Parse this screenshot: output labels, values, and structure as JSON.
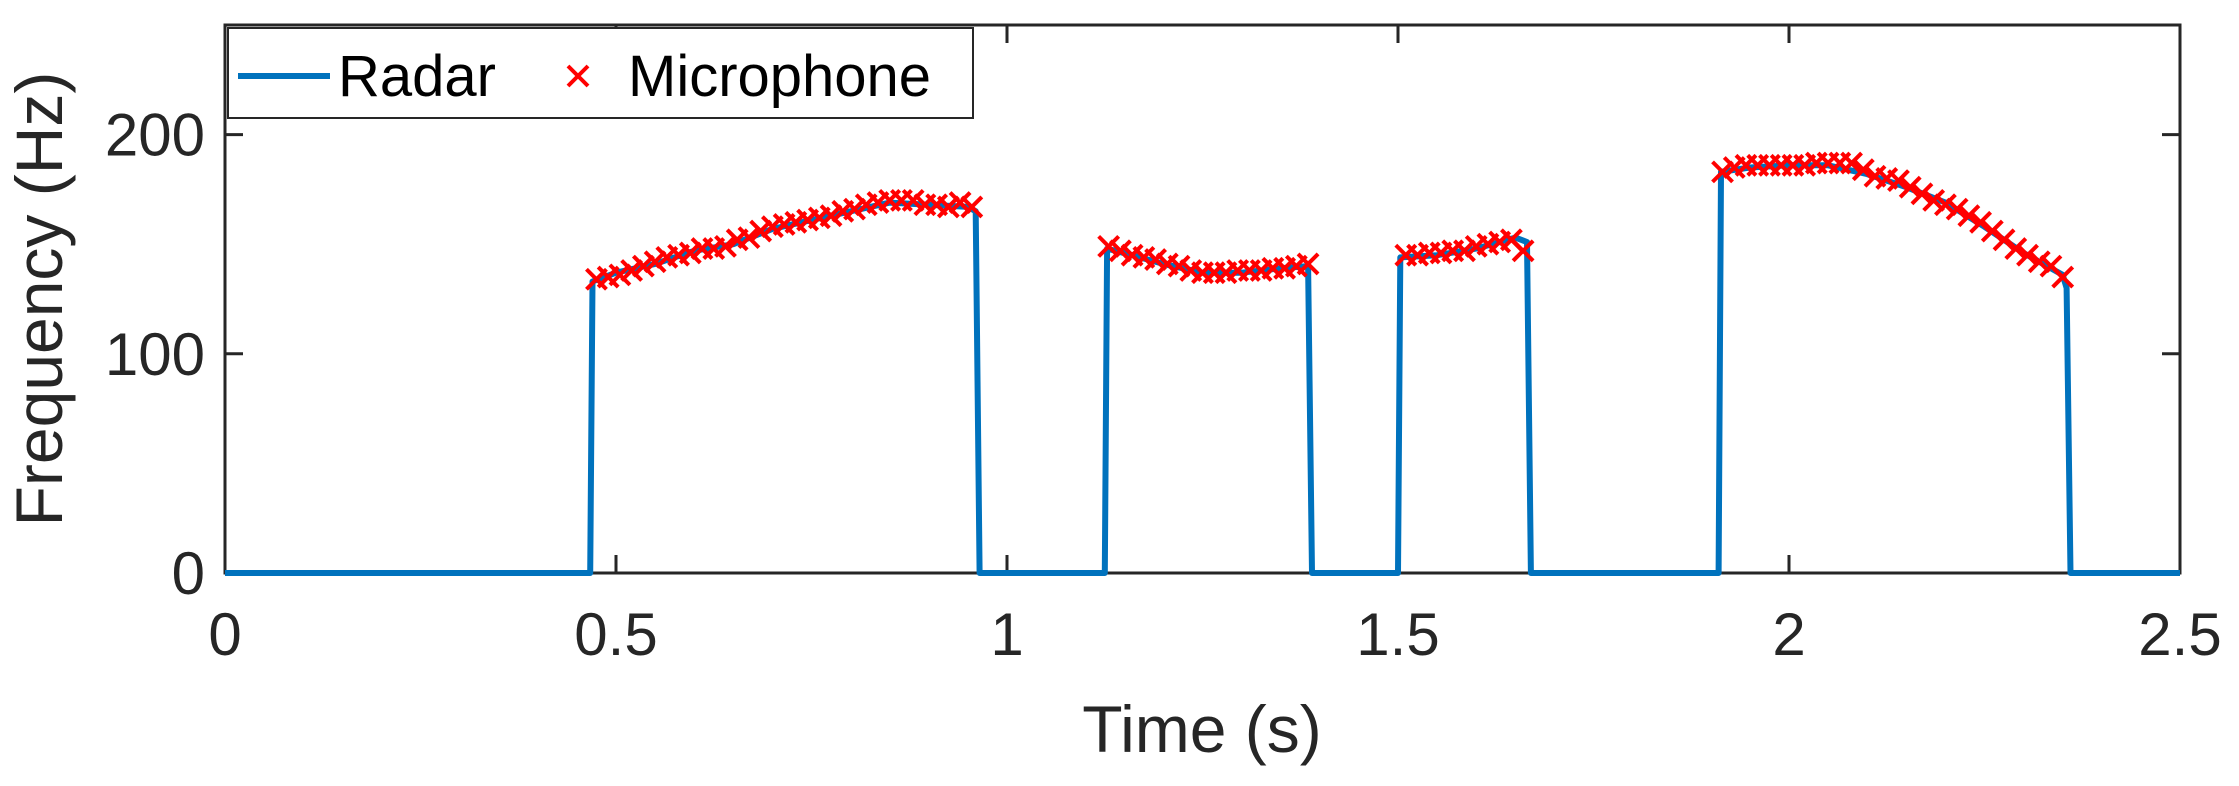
{
  "chart_data": {
    "type": "line",
    "title": "",
    "xlabel": "Time (s)",
    "ylabel": "Frequency (Hz)",
    "xlim": [
      0,
      2.5
    ],
    "ylim": [
      0,
      250
    ],
    "x_ticks": [
      "0",
      "0.5",
      "1",
      "1.5",
      "2",
      "2.5"
    ],
    "y_ticks": [
      "0",
      "100",
      "200"
    ],
    "x_tick_values": [
      0,
      0.5,
      1,
      1.5,
      2,
      2.5
    ],
    "y_tick_values": [
      0,
      100,
      200
    ],
    "grid": false,
    "legend_position": "top-left",
    "colors": {
      "radar": "#0072BD",
      "microphone": "#FF0000",
      "axis": "#262626"
    },
    "series": [
      {
        "name": "Radar",
        "kind": "line",
        "points": [
          [
            0,
            0
          ],
          [
            0.467,
            0
          ],
          [
            0.47,
            133
          ],
          [
            0.5,
            137
          ],
          [
            0.55,
            141
          ],
          [
            0.6,
            147
          ],
          [
            0.65,
            150
          ],
          [
            0.7,
            157
          ],
          [
            0.75,
            161
          ],
          [
            0.8,
            165
          ],
          [
            0.85,
            169
          ],
          [
            0.9,
            168
          ],
          [
            0.95,
            167
          ],
          [
            0.96,
            165
          ],
          [
            0.965,
            0
          ],
          [
            1.125,
            0
          ],
          [
            1.128,
            148
          ],
          [
            1.16,
            145
          ],
          [
            1.2,
            141
          ],
          [
            1.25,
            137
          ],
          [
            1.3,
            137
          ],
          [
            1.35,
            139
          ],
          [
            1.385,
            140
          ],
          [
            1.39,
            0
          ],
          [
            1.5,
            0
          ],
          [
            1.503,
            144
          ],
          [
            1.55,
            145
          ],
          [
            1.6,
            148
          ],
          [
            1.65,
            153
          ],
          [
            1.665,
            151
          ],
          [
            1.67,
            0
          ],
          [
            1.91,
            0
          ],
          [
            1.913,
            183
          ],
          [
            1.95,
            185
          ],
          [
            2.0,
            186
          ],
          [
            2.05,
            186
          ],
          [
            2.1,
            182
          ],
          [
            2.15,
            176
          ],
          [
            2.2,
            169
          ],
          [
            2.25,
            158
          ],
          [
            2.3,
            146
          ],
          [
            2.35,
            136
          ],
          [
            2.355,
            130
          ],
          [
            2.36,
            0
          ],
          [
            2.5,
            0
          ]
        ]
      },
      {
        "name": "Microphone",
        "kind": "marker",
        "marker": "x",
        "points": [
          [
            0.475,
            134
          ],
          [
            0.49,
            135
          ],
          [
            0.505,
            136
          ],
          [
            0.52,
            138
          ],
          [
            0.535,
            140
          ],
          [
            0.55,
            142
          ],
          [
            0.565,
            144
          ],
          [
            0.58,
            145
          ],
          [
            0.595,
            146
          ],
          [
            0.61,
            148
          ],
          [
            0.625,
            148
          ],
          [
            0.64,
            149
          ],
          [
            0.655,
            152
          ],
          [
            0.67,
            153
          ],
          [
            0.685,
            156
          ],
          [
            0.7,
            158
          ],
          [
            0.715,
            159
          ],
          [
            0.73,
            160
          ],
          [
            0.745,
            161
          ],
          [
            0.76,
            162
          ],
          [
            0.775,
            163
          ],
          [
            0.79,
            165
          ],
          [
            0.805,
            166
          ],
          [
            0.82,
            168
          ],
          [
            0.835,
            169
          ],
          [
            0.85,
            170
          ],
          [
            0.865,
            170
          ],
          [
            0.88,
            170
          ],
          [
            0.895,
            168
          ],
          [
            0.91,
            168
          ],
          [
            0.925,
            167
          ],
          [
            0.94,
            169
          ],
          [
            0.955,
            167
          ],
          [
            1.13,
            149
          ],
          [
            1.145,
            147
          ],
          [
            1.16,
            145
          ],
          [
            1.175,
            144
          ],
          [
            1.19,
            143
          ],
          [
            1.205,
            141
          ],
          [
            1.22,
            140
          ],
          [
            1.235,
            138
          ],
          [
            1.25,
            137
          ],
          [
            1.265,
            137
          ],
          [
            1.28,
            137
          ],
          [
            1.295,
            138
          ],
          [
            1.31,
            138
          ],
          [
            1.325,
            138
          ],
          [
            1.34,
            139
          ],
          [
            1.355,
            139
          ],
          [
            1.37,
            140
          ],
          [
            1.385,
            141
          ],
          [
            1.51,
            145
          ],
          [
            1.525,
            145
          ],
          [
            1.54,
            146
          ],
          [
            1.555,
            146
          ],
          [
            1.57,
            147
          ],
          [
            1.585,
            147
          ],
          [
            1.6,
            149
          ],
          [
            1.615,
            150
          ],
          [
            1.63,
            151
          ],
          [
            1.645,
            152
          ],
          [
            1.66,
            147
          ],
          [
            1.915,
            183
          ],
          [
            1.93,
            185
          ],
          [
            1.945,
            186
          ],
          [
            1.96,
            186
          ],
          [
            1.975,
            186
          ],
          [
            1.99,
            186
          ],
          [
            2.005,
            186
          ],
          [
            2.02,
            186
          ],
          [
            2.035,
            187
          ],
          [
            2.05,
            187
          ],
          [
            2.065,
            187
          ],
          [
            2.08,
            187
          ],
          [
            2.095,
            184
          ],
          [
            2.11,
            181
          ],
          [
            2.125,
            180
          ],
          [
            2.14,
            179
          ],
          [
            2.155,
            176
          ],
          [
            2.17,
            173
          ],
          [
            2.185,
            170
          ],
          [
            2.2,
            168
          ],
          [
            2.215,
            166
          ],
          [
            2.23,
            163
          ],
          [
            2.245,
            160
          ],
          [
            2.26,
            156
          ],
          [
            2.275,
            152
          ],
          [
            2.29,
            148
          ],
          [
            2.305,
            145
          ],
          [
            2.32,
            142
          ],
          [
            2.335,
            140
          ],
          [
            2.35,
            135
          ]
        ]
      }
    ]
  }
}
